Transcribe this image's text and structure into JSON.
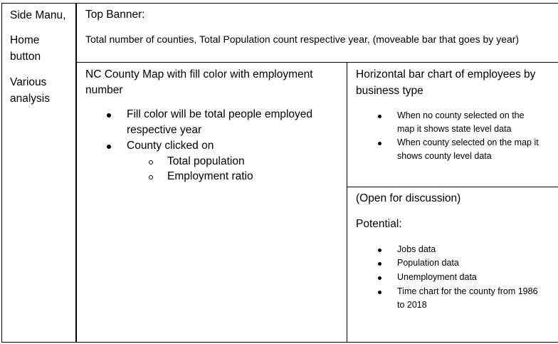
{
  "side_menu": {
    "title": "Side Manu,",
    "home_line1": "Home",
    "home_line2": "button",
    "analysis_line1": "Various",
    "analysis_line2": "analysis"
  },
  "top_banner": {
    "title": "Top Banner:",
    "description": "Total number of counties, Total Population count respective year, (moveable bar that goes by year)"
  },
  "map_panel": {
    "title_line1": "NC County Map with fill color with employment",
    "title_line2": "number",
    "bullets": [
      {
        "line1": "Fill color will be total people employed",
        "line2": "respective year"
      },
      {
        "line1": "County clicked on"
      }
    ],
    "sub_bullets": [
      "Total population",
      "Employment ratio"
    ]
  },
  "bar_chart_panel": {
    "title_line1": "Horizontal bar chart of employees by",
    "title_line2": "business type",
    "bullets": [
      {
        "line1": "When no county selected on the",
        "line2": "map it shows state level data"
      },
      {
        "line1": "When county selected on the map it",
        "line2": "shows county level data"
      }
    ]
  },
  "discussion_panel": {
    "title": "(Open for discussion)",
    "subtitle": "Potential:",
    "bullets": [
      {
        "line1": "Jobs data"
      },
      {
        "line1": "Population data"
      },
      {
        "line1": "Unemployment data"
      },
      {
        "line1": "Time chart for the county from 1986",
        "line2": "to 2018"
      }
    ]
  }
}
